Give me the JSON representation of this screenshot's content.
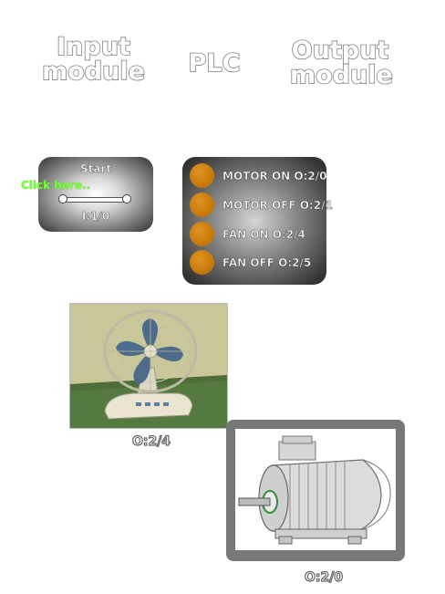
{
  "headers": {
    "input": [
      "Input",
      "module"
    ],
    "plc": "PLC",
    "output": [
      "Output",
      "module"
    ]
  },
  "input_panel": {
    "title": "Start",
    "click_hint": "Click here..",
    "address": "I:1/0"
  },
  "plc_panel": {
    "rows": [
      {
        "label": "MOTOR ON",
        "address": "O:2/0"
      },
      {
        "label": "MOTOR OFF",
        "address": "O:2/1"
      },
      {
        "label": "FAN ON",
        "address": "O:2/4"
      },
      {
        "label": "FAN OFF",
        "address": "O:2/5"
      }
    ]
  },
  "fan": {
    "label": "O:2/4"
  },
  "motor": {
    "label": "O:2/0"
  },
  "colors": {
    "lamp": "#d08417",
    "hint": "#7dff2a",
    "panel_dark": "#333333",
    "motor_frame": "#787878"
  }
}
